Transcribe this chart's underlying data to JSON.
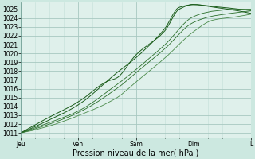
{
  "title": "",
  "xlabel": "Pression niveau de la mer( hPa )",
  "ylabel": "",
  "bg_color": "#cce8e0",
  "plot_bg_color": "#dff0eb",
  "grid_major_color": "#a8c8c0",
  "grid_minor_color": "#c4dfd8",
  "line_color_dark": "#1a5c1a",
  "line_color_mid": "#2a6e2a",
  "line_color_light": "#4a8a4a",
  "ylim": [
    1010.5,
    1025.8
  ],
  "yticks": [
    1011,
    1012,
    1013,
    1014,
    1015,
    1016,
    1017,
    1018,
    1019,
    1020,
    1021,
    1022,
    1023,
    1024,
    1025
  ],
  "xlim": [
    0,
    96
  ],
  "day_ticks": [
    0,
    24,
    48,
    72,
    96
  ],
  "day_labels": [
    "Jeu",
    "Ven",
    "Sam",
    "Dim",
    "L"
  ],
  "xlabel_fontsize": 7,
  "tick_fontsize": 5.5
}
